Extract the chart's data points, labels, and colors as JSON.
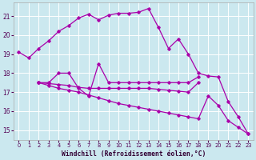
{
  "xlabel": "Windchill (Refroidissement éolien,°C)",
  "background_color": "#cbe8ef",
  "grid_color": "#ffffff",
  "line_color": "#aa00aa",
  "xlim": [
    -0.5,
    23.5
  ],
  "ylim": [
    14.5,
    21.7
  ],
  "yticks": [
    15,
    16,
    17,
    18,
    19,
    20,
    21
  ],
  "xticks": [
    0,
    1,
    2,
    3,
    4,
    5,
    6,
    7,
    8,
    9,
    10,
    11,
    12,
    13,
    14,
    15,
    16,
    17,
    18,
    19,
    20,
    21,
    22,
    23
  ],
  "series": [
    {
      "x": [
        0,
        1,
        2,
        3,
        4,
        5,
        6,
        7,
        8,
        9,
        10,
        11,
        12,
        13,
        14,
        15,
        16,
        17,
        18,
        19,
        20,
        21,
        22,
        23
      ],
      "y": [
        19.1,
        18.8,
        19.3,
        19.7,
        20.2,
        20.5,
        20.9,
        21.1,
        20.8,
        21.05,
        21.15,
        21.15,
        21.2,
        21.4,
        20.4,
        19.3,
        19.8,
        19.0,
        18.0,
        17.85,
        17.8,
        16.5,
        15.7,
        14.8
      ]
    },
    {
      "x": [
        2,
        3,
        4,
        5,
        6,
        7,
        8,
        9,
        10,
        11,
        12,
        13,
        14,
        15,
        16,
        17,
        18
      ],
      "y": [
        17.5,
        17.5,
        18.0,
        18.0,
        17.2,
        16.8,
        18.5,
        17.5,
        17.5,
        17.5,
        17.5,
        17.5,
        17.5,
        17.5,
        17.5,
        17.5,
        17.8
      ]
    },
    {
      "x": [
        2,
        3,
        4,
        5,
        6,
        7,
        8,
        9,
        10,
        11,
        12,
        13,
        14,
        15,
        16,
        17,
        18
      ],
      "y": [
        17.5,
        17.45,
        17.4,
        17.35,
        17.25,
        17.2,
        17.2,
        17.2,
        17.2,
        17.2,
        17.2,
        17.2,
        17.15,
        17.1,
        17.05,
        17.0,
        17.5
      ]
    },
    {
      "x": [
        2,
        3,
        4,
        5,
        6,
        7,
        8,
        9,
        10,
        11,
        12,
        13,
        14,
        15,
        16,
        17,
        18,
        19,
        20,
        21,
        22,
        23
      ],
      "y": [
        17.5,
        17.35,
        17.2,
        17.1,
        17.0,
        16.85,
        16.7,
        16.55,
        16.4,
        16.3,
        16.2,
        16.1,
        16.0,
        15.9,
        15.8,
        15.7,
        15.6,
        16.8,
        16.3,
        15.5,
        15.15,
        14.8
      ]
    }
  ]
}
